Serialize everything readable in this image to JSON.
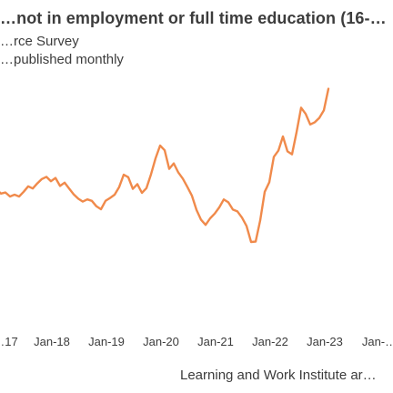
{
  "chart_data": {
    "type": "line",
    "title": "…not in employment or full time education (16-…",
    "subtitle_lines": [
      "…rce Survey",
      "…published monthly"
    ],
    "source": "Learning and Work Institute ar…",
    "xlabel": "",
    "ylabel": "",
    "grid": false,
    "legend": "none",
    "color": "#f08a4b",
    "x_ticks": [
      "…17",
      "Jan-18",
      "Jan-19",
      "Jan-20",
      "Jan-21",
      "Jan-22",
      "Jan-23",
      "Jan-…"
    ],
    "series": [
      {
        "values": [
          33.0,
          31.8,
          32.1,
          31.0,
          31.5,
          31.0,
          32.3,
          33.8,
          33.2,
          34.6,
          35.8,
          36.4,
          35.2,
          36.1,
          33.9,
          34.8,
          33.2,
          31.6,
          30.4,
          29.6,
          30.2,
          29.8,
          28.3,
          27.5,
          29.8,
          30.6,
          31.5,
          33.6,
          37.0,
          36.3,
          33.1,
          34.4,
          32.0,
          33.3,
          37.1,
          41.5,
          45.0,
          43.7,
          38.6,
          40.1,
          37.6,
          35.9,
          33.6,
          31.2,
          27.3,
          24.6,
          23.2,
          25.0,
          26.3,
          28.0,
          30.2,
          29.4,
          27.4,
          26.9,
          25.2,
          22.9,
          18.5,
          18.6,
          24.4,
          32.3,
          34.9,
          41.9,
          43.6,
          47.5,
          43.4,
          42.6,
          48.7,
          55.4,
          53.7,
          50.8,
          51.4,
          52.6,
          54.7,
          60.6
        ]
      }
    ]
  }
}
